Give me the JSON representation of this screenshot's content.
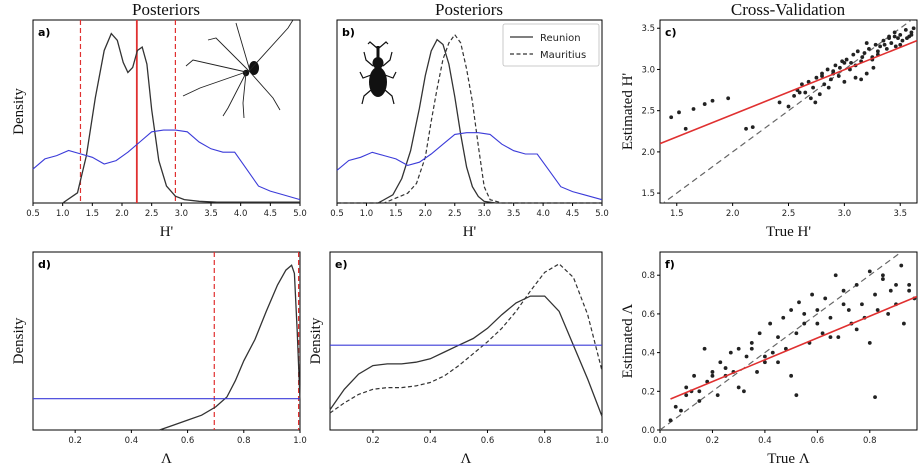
{
  "colors": {
    "curve": "#333333",
    "prior": "#3b3bd9",
    "redline": "#e03030",
    "scatter": "#222222"
  },
  "column_titles": [
    "Posteriors",
    "Posteriors",
    "Cross-Validation"
  ],
  "icons": {
    "a": "spider-silhouette-icon",
    "b": "weevil-silhouette-icon"
  },
  "legend": {
    "solid": "Reunion",
    "dashed": "Mauritius"
  },
  "chart_data": [
    {
      "id": "a",
      "type": "line",
      "panel_label": "a)",
      "title": "Posteriors",
      "xlabel": "H'",
      "ylabel": "Density",
      "xlim": [
        0.5,
        5.0
      ],
      "xticks": [
        "0.5",
        "1.0",
        "1.5",
        "2.0",
        "2.5",
        "3.0",
        "3.5",
        "4.0",
        "4.5",
        "5.0"
      ],
      "series": [
        {
          "role": "posterior",
          "style": "solid",
          "x": [
            0.5,
            1.0,
            1.25,
            1.4,
            1.55,
            1.7,
            1.82,
            1.92,
            2.02,
            2.1,
            2.18,
            2.26,
            2.34,
            2.42,
            2.5,
            2.62,
            2.75,
            2.9,
            3.05,
            3.3,
            3.6,
            4.0,
            4.5,
            5.0
          ],
          "y": [
            0.0,
            0.0,
            0.06,
            0.28,
            0.62,
            0.9,
            1.0,
            0.96,
            0.83,
            0.77,
            0.8,
            0.9,
            0.92,
            0.82,
            0.55,
            0.25,
            0.1,
            0.04,
            0.02,
            0.01,
            0.005,
            0.005,
            0.005,
            0.005
          ]
        },
        {
          "role": "prior",
          "style": "blue",
          "x": [
            0.5,
            0.7,
            0.9,
            1.1,
            1.3,
            1.5,
            1.7,
            1.9,
            2.1,
            2.3,
            2.5,
            2.7,
            2.9,
            3.1,
            3.3,
            3.5,
            3.7,
            3.9,
            4.1,
            4.3,
            4.5,
            4.7,
            5.0
          ],
          "y": [
            0.2,
            0.26,
            0.28,
            0.31,
            0.29,
            0.27,
            0.23,
            0.25,
            0.3,
            0.36,
            0.42,
            0.43,
            0.43,
            0.42,
            0.36,
            0.32,
            0.3,
            0.3,
            0.2,
            0.1,
            0.07,
            0.05,
            0.02
          ]
        }
      ],
      "vlines": [
        {
          "x": 1.3,
          "style": "dashed"
        },
        {
          "x": 2.25,
          "style": "solid"
        },
        {
          "x": 2.9,
          "style": "dashed"
        }
      ]
    },
    {
      "id": "b",
      "type": "line",
      "panel_label": "b)",
      "title": "Posteriors",
      "xlabel": "H'",
      "ylabel": "",
      "xlim": [
        0.5,
        5.0
      ],
      "xticks": [
        "0.5",
        "1.0",
        "1.5",
        "2.0",
        "2.5",
        "3.0",
        "3.5",
        "4.0",
        "4.5",
        "5.0"
      ],
      "series": [
        {
          "name": "Reunion",
          "role": "posterior",
          "style": "solid",
          "x": [
            0.5,
            1.2,
            1.45,
            1.6,
            1.75,
            1.9,
            2.0,
            2.1,
            2.2,
            2.3,
            2.4,
            2.5,
            2.6,
            2.7,
            2.8,
            2.9,
            3.0,
            3.2,
            5.0
          ],
          "y": [
            0.0,
            0.0,
            0.05,
            0.15,
            0.32,
            0.58,
            0.78,
            0.93,
            1.0,
            0.97,
            0.85,
            0.65,
            0.42,
            0.22,
            0.1,
            0.04,
            0.01,
            0.0,
            0.0
          ]
        },
        {
          "name": "Mauritius",
          "role": "posterior",
          "style": "dashed",
          "x": [
            0.5,
            1.3,
            1.5,
            1.7,
            1.85,
            2.0,
            2.1,
            2.2,
            2.3,
            2.4,
            2.5,
            2.6,
            2.7,
            2.8,
            2.9,
            3.0,
            3.1,
            3.3,
            5.0
          ],
          "y": [
            0.0,
            0.0,
            0.03,
            0.06,
            0.12,
            0.28,
            0.5,
            0.7,
            0.88,
            0.98,
            1.03,
            0.98,
            0.82,
            0.62,
            0.35,
            0.1,
            0.02,
            0.0,
            0.0
          ]
        },
        {
          "role": "prior",
          "style": "blue",
          "x": [
            0.5,
            0.7,
            0.9,
            1.1,
            1.3,
            1.5,
            1.7,
            1.9,
            2.1,
            2.3,
            2.5,
            2.7,
            2.9,
            3.1,
            3.3,
            3.5,
            3.7,
            3.9,
            4.1,
            4.3,
            4.5,
            4.7,
            5.0
          ],
          "y": [
            0.2,
            0.26,
            0.28,
            0.31,
            0.29,
            0.27,
            0.23,
            0.25,
            0.3,
            0.36,
            0.42,
            0.43,
            0.43,
            0.42,
            0.36,
            0.32,
            0.3,
            0.3,
            0.2,
            0.1,
            0.07,
            0.05,
            0.02
          ]
        }
      ]
    },
    {
      "id": "c",
      "type": "scatter",
      "panel_label": "c)",
      "title": "Cross-Validation",
      "xlabel": "True H'",
      "ylabel": "Estimated H'",
      "xlim": [
        1.35,
        3.65
      ],
      "ylim": [
        1.38,
        3.6
      ],
      "xticks": [
        "1.5",
        "2.0",
        "2.5",
        "3.0",
        "3.5"
      ],
      "yticks": [
        "1.5",
        "2.0",
        "2.5",
        "3.0",
        "3.5"
      ],
      "x": [
        1.45,
        1.52,
        1.58,
        1.65,
        1.75,
        1.82,
        1.96,
        2.12,
        2.18,
        2.42,
        2.5,
        2.55,
        2.58,
        2.62,
        2.65,
        2.68,
        2.7,
        2.72,
        2.75,
        2.78,
        2.8,
        2.82,
        2.85,
        2.88,
        2.9,
        2.92,
        2.95,
        2.98,
        3.0,
        3.02,
        3.05,
        3.08,
        3.1,
        3.12,
        3.15,
        3.18,
        3.2,
        3.22,
        3.25,
        3.28,
        3.3,
        3.32,
        3.35,
        3.38,
        3.4,
        3.42,
        3.45,
        3.48,
        3.5,
        3.52,
        3.55,
        3.58,
        3.6,
        3.62,
        2.74,
        2.86,
        2.96,
        3.06,
        3.16,
        3.26,
        3.36,
        3.46,
        3.56,
        2.9,
        3.1,
        3.3,
        3.5,
        2.6,
        2.8,
        3.0,
        3.2,
        3.4,
        3.6,
        3.15,
        3.25,
        3.45
      ],
      "y": [
        2.42,
        2.48,
        2.28,
        2.52,
        2.58,
        2.62,
        2.65,
        2.28,
        2.3,
        2.6,
        2.55,
        2.68,
        2.75,
        2.82,
        2.72,
        2.85,
        2.65,
        2.78,
        2.9,
        2.7,
        2.95,
        2.82,
        3.0,
        2.88,
        2.98,
        3.05,
        2.92,
        3.1,
        2.85,
        3.12,
        3.0,
        3.18,
        3.05,
        3.22,
        3.1,
        3.2,
        2.95,
        3.25,
        3.15,
        3.3,
        3.22,
        3.28,
        3.35,
        3.25,
        3.4,
        3.32,
        3.45,
        3.38,
        3.42,
        3.35,
        3.48,
        3.4,
        3.45,
        3.5,
        2.6,
        2.78,
        3.02,
        3.08,
        3.15,
        3.02,
        3.3,
        3.28,
        3.38,
        2.95,
        2.9,
        3.18,
        3.3,
        2.72,
        2.92,
        3.08,
        3.32,
        3.38,
        3.42,
        2.88,
        3.12,
        3.4
      ],
      "fit_line": {
        "x": [
          1.35,
          3.65
        ],
        "y": [
          2.1,
          3.35
        ]
      },
      "identity_line": {
        "x": [
          1.35,
          3.65
        ],
        "y": [
          1.35,
          3.65
        ]
      }
    },
    {
      "id": "d",
      "type": "line",
      "panel_label": "d)",
      "title": "",
      "xlabel": "Λ",
      "ylabel": "Density",
      "xlim": [
        0.05,
        1.0
      ],
      "xticks": [
        "0.2",
        "0.4",
        "0.6",
        "0.8",
        "1.0"
      ],
      "series": [
        {
          "role": "posterior",
          "style": "solid",
          "x": [
            0.5,
            0.55,
            0.6,
            0.65,
            0.7,
            0.74,
            0.77,
            0.8,
            0.84,
            0.88,
            0.92,
            0.95,
            0.97,
            0.98,
            0.99,
            1.0
          ],
          "y": [
            0.0,
            0.03,
            0.06,
            0.09,
            0.14,
            0.2,
            0.3,
            0.42,
            0.55,
            0.72,
            0.88,
            0.97,
            1.0,
            0.95,
            0.6,
            0.18
          ]
        },
        {
          "role": "prior",
          "style": "blue",
          "x": [
            0.05,
            1.0
          ],
          "y": [
            0.19,
            0.19
          ]
        }
      ],
      "vlines": [
        {
          "x": 0.695,
          "style": "dashed"
        },
        {
          "x": 0.995,
          "style": "dashed"
        }
      ]
    },
    {
      "id": "e",
      "type": "line",
      "panel_label": "e)",
      "title": "",
      "xlabel": "Λ",
      "ylabel": "Density",
      "xlim": [
        0.05,
        1.0
      ],
      "xticks": [
        "0.2",
        "0.4",
        "0.6",
        "0.8",
        "1.0"
      ],
      "series": [
        {
          "name": "Reunion",
          "role": "posterior",
          "style": "solid",
          "x": [
            0.05,
            0.1,
            0.15,
            0.2,
            0.25,
            0.3,
            0.35,
            0.4,
            0.45,
            0.5,
            0.55,
            0.6,
            0.65,
            0.7,
            0.75,
            0.8,
            0.85,
            0.9,
            0.95,
            1.0
          ],
          "y": [
            0.12,
            0.24,
            0.33,
            0.38,
            0.39,
            0.39,
            0.4,
            0.42,
            0.46,
            0.5,
            0.54,
            0.6,
            0.68,
            0.75,
            0.79,
            0.79,
            0.7,
            0.5,
            0.3,
            0.08
          ]
        },
        {
          "name": "Mauritius",
          "role": "posterior",
          "style": "dashed",
          "x": [
            0.05,
            0.1,
            0.15,
            0.2,
            0.25,
            0.3,
            0.35,
            0.4,
            0.45,
            0.5,
            0.55,
            0.6,
            0.65,
            0.7,
            0.75,
            0.8,
            0.85,
            0.9,
            0.95,
            1.0
          ],
          "y": [
            0.1,
            0.16,
            0.21,
            0.24,
            0.25,
            0.25,
            0.26,
            0.28,
            0.32,
            0.38,
            0.45,
            0.52,
            0.6,
            0.7,
            0.82,
            0.93,
            0.98,
            0.9,
            0.68,
            0.35
          ]
        },
        {
          "role": "prior",
          "style": "blue",
          "x": [
            0.05,
            1.0
          ],
          "y": [
            0.5,
            0.5
          ]
        }
      ]
    },
    {
      "id": "f",
      "type": "scatter",
      "panel_label": "f)",
      "title": "",
      "xlabel": "True Λ",
      "ylabel": "Estimated Λ",
      "xlim": [
        0.0,
        0.98
      ],
      "ylim": [
        0.0,
        0.92
      ],
      "xticks": [
        "0.0",
        "0.2",
        "0.4",
        "0.6",
        "0.8"
      ],
      "yticks": [
        "0.0",
        "0.2",
        "0.4",
        "0.6",
        "0.8"
      ],
      "x": [
        0.04,
        0.06,
        0.08,
        0.1,
        0.12,
        0.13,
        0.15,
        0.17,
        0.18,
        0.2,
        0.22,
        0.23,
        0.25,
        0.27,
        0.28,
        0.3,
        0.32,
        0.33,
        0.35,
        0.37,
        0.38,
        0.4,
        0.42,
        0.43,
        0.45,
        0.47,
        0.48,
        0.5,
        0.52,
        0.53,
        0.55,
        0.57,
        0.58,
        0.6,
        0.62,
        0.63,
        0.65,
        0.67,
        0.68,
        0.7,
        0.72,
        0.73,
        0.75,
        0.77,
        0.78,
        0.8,
        0.82,
        0.83,
        0.85,
        0.87,
        0.88,
        0.9,
        0.92,
        0.93,
        0.95,
        0.97,
        0.1,
        0.2,
        0.3,
        0.4,
        0.5,
        0.6,
        0.7,
        0.8,
        0.9,
        0.15,
        0.25,
        0.35,
        0.45,
        0.55,
        0.65,
        0.75,
        0.85,
        0.95,
        0.52,
        0.82
      ],
      "y": [
        0.05,
        0.12,
        0.1,
        0.22,
        0.2,
        0.28,
        0.15,
        0.42,
        0.25,
        0.3,
        0.18,
        0.35,
        0.28,
        0.4,
        0.3,
        0.42,
        0.2,
        0.38,
        0.45,
        0.3,
        0.5,
        0.35,
        0.55,
        0.4,
        0.48,
        0.58,
        0.42,
        0.62,
        0.5,
        0.66,
        0.55,
        0.45,
        0.7,
        0.62,
        0.5,
        0.68,
        0.58,
        0.8,
        0.48,
        0.72,
        0.62,
        0.55,
        0.75,
        0.65,
        0.58,
        0.82,
        0.7,
        0.62,
        0.78,
        0.6,
        0.72,
        0.65,
        0.85,
        0.55,
        0.75,
        0.68,
        0.18,
        0.28,
        0.22,
        0.38,
        0.28,
        0.55,
        0.65,
        0.45,
        0.75,
        0.2,
        0.32,
        0.42,
        0.35,
        0.6,
        0.48,
        0.52,
        0.8,
        0.72,
        0.18,
        0.17
      ],
      "fit_line": {
        "x": [
          0.04,
          0.98
        ],
        "y": [
          0.16,
          0.69
        ]
      },
      "identity_line": {
        "x": [
          0.0,
          0.92
        ],
        "y": [
          0.0,
          0.92
        ]
      }
    }
  ]
}
